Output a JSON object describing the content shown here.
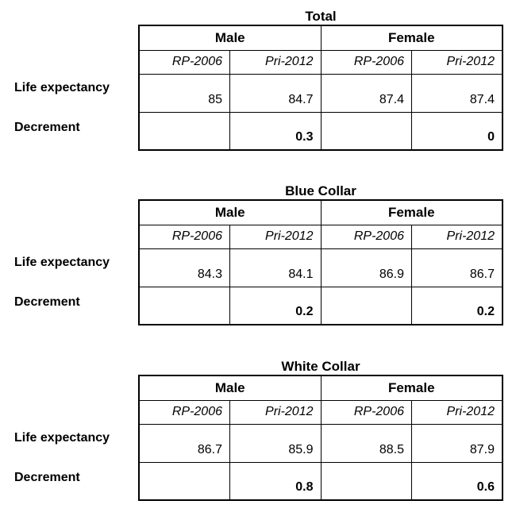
{
  "page": {
    "background_color": "#ffffff",
    "text_color": "#000000",
    "border_color": "#000000"
  },
  "labels": {
    "life_expectancy": "Life expectancy",
    "decrement": "Decrement"
  },
  "headers": {
    "male": "Male",
    "female": "Female",
    "basis": [
      "RP-2006",
      "Pri-2012",
      "RP-2006",
      "Pri-2012"
    ]
  },
  "tables": [
    {
      "title": "Total",
      "life_expectancy": [
        "85",
        "84.7",
        "87.4",
        "87.4"
      ],
      "decrement": [
        "",
        "0.3",
        "",
        "0"
      ]
    },
    {
      "title": "Blue Collar",
      "life_expectancy": [
        "84.3",
        "84.1",
        "86.9",
        "86.7"
      ],
      "decrement": [
        "",
        "0.2",
        "",
        "0.2"
      ]
    },
    {
      "title": "White Collar",
      "life_expectancy": [
        "86.7",
        "85.9",
        "88.5",
        "87.9"
      ],
      "decrement": [
        "",
        "0.8",
        "",
        "0.6"
      ]
    }
  ]
}
